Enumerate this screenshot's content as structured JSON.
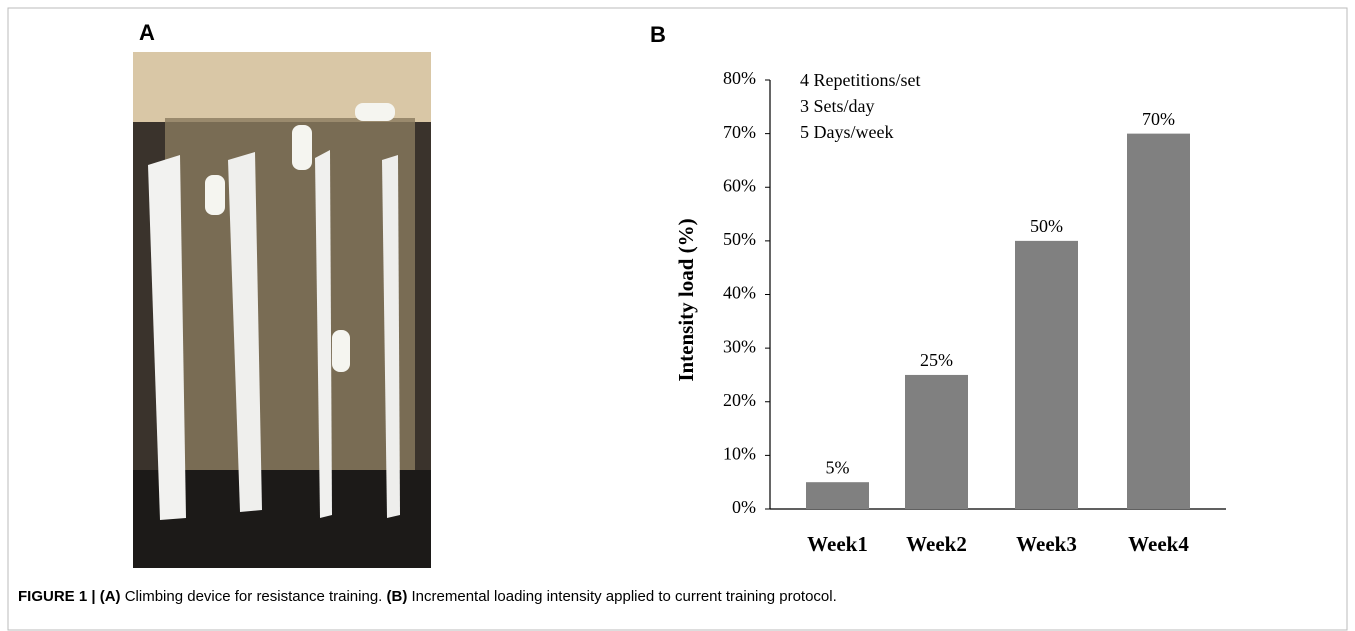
{
  "panels": [
    {
      "label": "A"
    },
    {
      "label": "B"
    }
  ],
  "chart_data": {
    "type": "bar",
    "categories": [
      "Week1",
      "Week2",
      "Week3",
      "Week4"
    ],
    "values": [
      5,
      25,
      50,
      70
    ],
    "value_labels": [
      "5%",
      "25%",
      "50%",
      "70%"
    ],
    "color": "#808080",
    "ylabel": "Intensity load (%)",
    "ylim": [
      0,
      80
    ],
    "yticks": [
      {
        "value": 0,
        "label": "0%"
      },
      {
        "value": 10,
        "label": "10%"
      },
      {
        "value": 20,
        "label": "20%"
      },
      {
        "value": 30,
        "label": "30%"
      },
      {
        "value": 40,
        "label": "40%"
      },
      {
        "value": 50,
        "label": "50%"
      },
      {
        "value": 60,
        "label": "60%"
      },
      {
        "value": 70,
        "label": "70%"
      },
      {
        "value": 80,
        "label": "80%"
      }
    ],
    "annotations": [
      "4 Repetitions/set",
      "3 Sets/day",
      "5 Days/week"
    ]
  },
  "caption": {
    "figure": "FIGURE 1 |",
    "items": [
      {
        "label": "(A)",
        "text": "Climbing device for resistance training."
      },
      {
        "label": "(B)",
        "text": "Incremental loading intensity applied to current training protocol."
      }
    ]
  }
}
